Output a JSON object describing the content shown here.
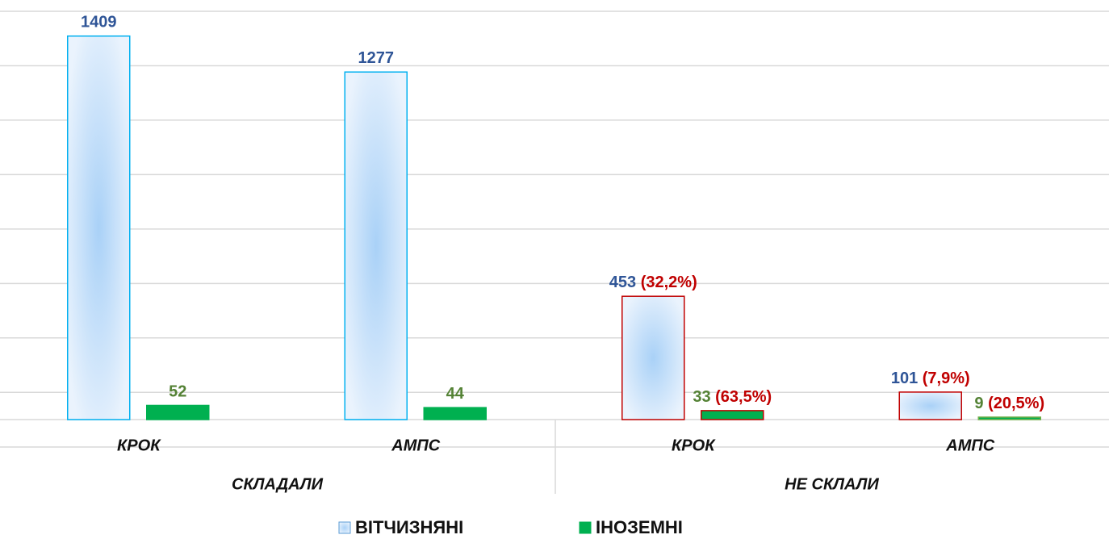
{
  "chart_data": {
    "type": "bar",
    "categories": [
      "КРОК",
      "АМПС",
      "КРОК",
      "АМПС"
    ],
    "groups": [
      "СКЛАДАЛИ",
      "НЕ СКЛАЛИ"
    ],
    "series": [
      {
        "name": "ВІТЧИЗНЯНІ",
        "color": "#a9d1f7",
        "label_color": "#2f5597",
        "border_colors": [
          "#00b0f0",
          "#00b0f0",
          "#c00000",
          "#c00000"
        ],
        "values": [
          1409,
          1277,
          453,
          101
        ],
        "share_labels": [
          null,
          null,
          "(32,2%)",
          "(7,9%)"
        ]
      },
      {
        "name": "ІНОЗЕМНІ",
        "color": "#00b050",
        "label_color": "#548235",
        "border_colors": [
          "#00b050",
          "#00b050",
          "#c00000",
          "#70ad47"
        ],
        "values": [
          52,
          44,
          33,
          9
        ],
        "share_labels": [
          null,
          null,
          "(63,5%)",
          "(20,5%)"
        ]
      }
    ],
    "share_color": "#c00000",
    "ylim": [
      0,
      1500
    ],
    "yticks": [
      0,
      100,
      300,
      500,
      700,
      900,
      1100,
      1300,
      1500
    ],
    "grid": true
  }
}
